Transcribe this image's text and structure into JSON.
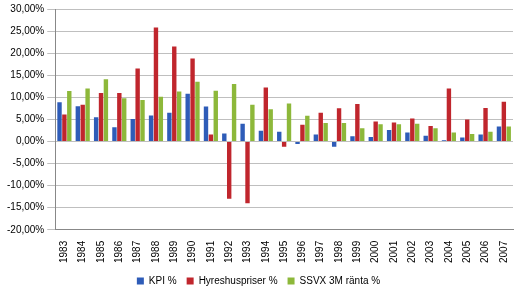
{
  "chart_data": {
    "type": "bar",
    "categories": [
      "1983",
      "1984",
      "1985",
      "1986",
      "1987",
      "1988",
      "1989",
      "1990",
      "1991",
      "1992",
      "1993",
      "1994",
      "1995",
      "1996",
      "1997",
      "1998",
      "1999",
      "2000",
      "2001",
      "2002",
      "2003",
      "2004",
      "2005",
      "2006",
      "2007"
    ],
    "series": [
      {
        "name": "KPI %",
        "color": "#2E5CB8",
        "values": [
          8.9,
          8.0,
          5.5,
          3.2,
          5.1,
          5.9,
          6.5,
          10.8,
          7.9,
          1.8,
          4.0,
          2.4,
          2.2,
          -0.6,
          1.6,
          -1.2,
          1.2,
          1.0,
          2.6,
          2.0,
          1.3,
          0.3,
          0.9,
          1.6,
          3.4
        ]
      },
      {
        "name": "Hyreshuspriser %",
        "color": "#C0262D",
        "values": [
          6.1,
          8.3,
          11.0,
          11.0,
          16.5,
          25.8,
          21.5,
          18.8,
          1.6,
          -13.0,
          -14.0,
          12.2,
          -1.2,
          3.8,
          6.5,
          7.5,
          8.5,
          4.5,
          4.3,
          5.2,
          3.5,
          12.0,
          5.0,
          7.6,
          9.0
        ]
      },
      {
        "name": "SSVX 3M ränta %",
        "color": "#8DB83A",
        "values": [
          11.4,
          12.0,
          14.1,
          9.8,
          9.4,
          10.1,
          11.3,
          13.5,
          11.5,
          13.0,
          8.3,
          7.3,
          8.6,
          5.8,
          4.2,
          4.2,
          3.0,
          3.9,
          3.9,
          4.0,
          3.0,
          2.0,
          1.7,
          2.2,
          3.4
        ]
      }
    ],
    "ylim": [
      -20,
      30
    ],
    "yticks": [
      {
        "value": -20,
        "label": "-20,00%"
      },
      {
        "value": -15,
        "label": "-15,00%"
      },
      {
        "value": -10,
        "label": "-10,00%"
      },
      {
        "value": -5,
        "label": "-5,00%"
      },
      {
        "value": 0,
        "label": "0,00%"
      },
      {
        "value": 5,
        "label": "5,00%"
      },
      {
        "value": 10,
        "label": "10,00%"
      },
      {
        "value": 15,
        "label": "15,00%"
      },
      {
        "value": 20,
        "label": "20,00%"
      },
      {
        "value": 25,
        "label": "25,00%"
      },
      {
        "value": 30,
        "label": "30,00%"
      }
    ],
    "grid": true,
    "legend": "bottom"
  }
}
